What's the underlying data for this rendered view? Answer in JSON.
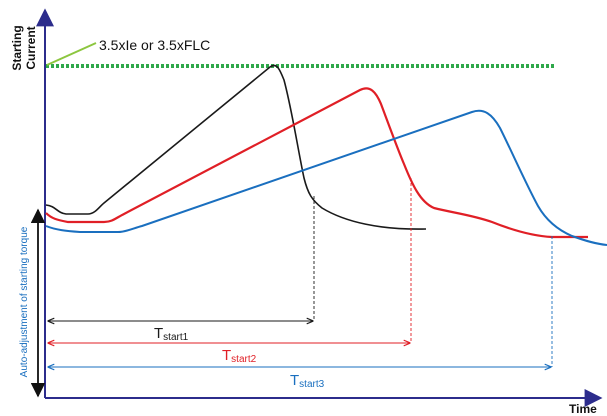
{
  "axes": {
    "y_label_line1": "Starting",
    "y_label_line2": "Current",
    "x_label": "Time",
    "side_label": "Auto-adjustment of starting torque"
  },
  "threshold": {
    "label": "3.5xIe or 3.5xFLC"
  },
  "durations": [
    {
      "main": "T",
      "sub": "start1"
    },
    {
      "main": "T",
      "sub": "start2"
    },
    {
      "main": "T",
      "sub": "start3"
    }
  ],
  "colors": {
    "axis": "#2c2c8c",
    "curve_black": "#1a1a1a",
    "curve_red": "#e01f26",
    "curve_blue": "#1a6fbf",
    "threshold": "#2fa84a",
    "leader": "#8cc63f"
  }
}
